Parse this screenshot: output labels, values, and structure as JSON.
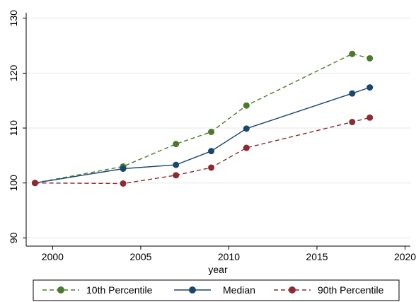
{
  "chart_data": {
    "type": "line",
    "title": "",
    "xlabel": "year",
    "ylabel": "",
    "xlim": [
      1998.5,
      2020.3
    ],
    "ylim": [
      88.5,
      131
    ],
    "x_ticks": [
      2000,
      2005,
      2010,
      2015,
      2020
    ],
    "y_ticks": [
      90,
      100,
      110,
      120,
      130
    ],
    "grid": "horizontal",
    "legend_position": "bottom",
    "series": [
      {
        "name": "10th Percentile",
        "color": "#4a7a2a",
        "line_style": "dashed",
        "x": [
          1999,
          2004,
          2007,
          2009,
          2011,
          2017,
          2018
        ],
        "y": [
          100,
          103,
          107.1,
          109.3,
          114.1,
          123.5,
          122.7
        ]
      },
      {
        "name": "Median",
        "color": "#1a4770",
        "line_style": "solid",
        "x": [
          1999,
          2004,
          2007,
          2009,
          2011,
          2017,
          2018
        ],
        "y": [
          100,
          102.6,
          103.3,
          105.8,
          109.9,
          116.3,
          117.4
        ]
      },
      {
        "name": "90th Percentile",
        "color": "#8e2a30",
        "line_style": "dashed",
        "x": [
          1999,
          2004,
          2007,
          2009,
          2011,
          2017,
          2018
        ],
        "y": [
          100,
          99.9,
          101.4,
          102.8,
          106.4,
          111.1,
          111.9
        ]
      }
    ]
  }
}
